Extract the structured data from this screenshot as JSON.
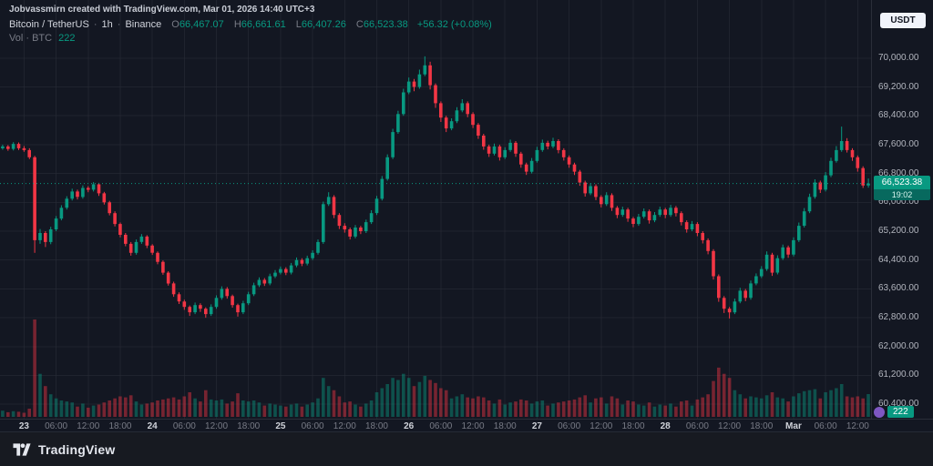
{
  "watermark": "Jobvassmirn created with TradingView.com, Mar 01, 2026 14:40 UTC+3",
  "header": {
    "symbol": "Bitcoin / TetherUS",
    "sep": "·",
    "interval": "1h",
    "exchange": "Binance",
    "ohlc": {
      "o_label": "O",
      "o": "66,467.07",
      "h_label": "H",
      "h": "66,661.61",
      "l_label": "L",
      "l": "66,407.26",
      "c_label": "C",
      "c": "66,523.38",
      "change": "+56.32 (+0.08%)"
    },
    "volume_label": "Vol · BTC",
    "volume_value": "222"
  },
  "price_scale": {
    "currency_button": "USDT",
    "last_price": "66,523.38",
    "countdown": "19:02",
    "volume_badge": "222"
  },
  "footer": {
    "brand": "TradingView"
  },
  "colors": {
    "up": "#089981",
    "down": "#f23645",
    "vol_up": "rgba(8,153,129,0.45)",
    "vol_down": "rgba(242,54,69,0.45)",
    "grid": "rgba(42,46,57,0.55)",
    "countdown_bg": "#07695e",
    "purple": "#7e57c2",
    "bg": "#131722"
  },
  "chart_data": {
    "type": "candlestick",
    "title": "Bitcoin / TetherUS · 1h · Binance",
    "symbol": "BTCUSDT",
    "interval": "1h",
    "exchange": "Binance",
    "last_close": 66523.38,
    "last_volume": 222,
    "countdown": "19:02",
    "price_axis": {
      "min": 60000,
      "max": 70400,
      "tick_step": 800,
      "ticks": [
        {
          "v": 70000,
          "label": "70,000.00"
        },
        {
          "v": 69200,
          "label": "69,200.00"
        },
        {
          "v": 68400,
          "label": "68,400.00"
        },
        {
          "v": 67600,
          "label": "67,600.00"
        },
        {
          "v": 66800,
          "label": "66,800.00"
        },
        {
          "v": 66000,
          "label": "66,000.00"
        },
        {
          "v": 65200,
          "label": "65,200.00"
        },
        {
          "v": 64400,
          "label": "64,400.00"
        },
        {
          "v": 63600,
          "label": "63,600.00"
        },
        {
          "v": 62800,
          "label": "62,800.00"
        },
        {
          "v": 62000,
          "label": "62,000.00"
        },
        {
          "v": 61200,
          "label": "61,200.00"
        },
        {
          "v": 60400,
          "label": "60,400.00"
        }
      ]
    },
    "time_labels": [
      {
        "t": "23",
        "i": 4,
        "d": 1
      },
      {
        "t": "06:00",
        "i": 10
      },
      {
        "t": "12:00",
        "i": 16
      },
      {
        "t": "18:00",
        "i": 22
      },
      {
        "t": "24",
        "i": 28,
        "d": 1
      },
      {
        "t": "06:00",
        "i": 34
      },
      {
        "t": "12:00",
        "i": 40
      },
      {
        "t": "18:00",
        "i": 46
      },
      {
        "t": "25",
        "i": 52,
        "d": 1
      },
      {
        "t": "06:00",
        "i": 58
      },
      {
        "t": "12:00",
        "i": 64
      },
      {
        "t": "18:00",
        "i": 70
      },
      {
        "t": "26",
        "i": 76,
        "d": 1
      },
      {
        "t": "06:00",
        "i": 82
      },
      {
        "t": "12:00",
        "i": 88
      },
      {
        "t": "18:00",
        "i": 94
      },
      {
        "t": "27",
        "i": 100,
        "d": 1
      },
      {
        "t": "06:00",
        "i": 106
      },
      {
        "t": "12:00",
        "i": 112
      },
      {
        "t": "18:00",
        "i": 118
      },
      {
        "t": "28",
        "i": 124,
        "d": 1
      },
      {
        "t": "06:00",
        "i": 130
      },
      {
        "t": "12:00",
        "i": 136
      },
      {
        "t": "18:00",
        "i": 142
      },
      {
        "t": "Mar",
        "i": 148,
        "d": 1
      },
      {
        "t": "06:00",
        "i": 154
      },
      {
        "t": "12:00",
        "i": 160
      }
    ],
    "candles": [
      [
        67500,
        67600,
        67460,
        67550,
        60
      ],
      [
        67550,
        67590,
        67430,
        67480,
        45
      ],
      [
        67480,
        67670,
        67440,
        67620,
        55
      ],
      [
        67620,
        67660,
        67450,
        67500,
        50
      ],
      [
        67500,
        67560,
        67400,
        67450,
        40
      ],
      [
        67450,
        67500,
        67200,
        67250,
        80
      ],
      [
        67250,
        67290,
        64600,
        64950,
        950
      ],
      [
        64950,
        65260,
        64850,
        65150,
        420
      ],
      [
        65150,
        65200,
        64760,
        64900,
        300
      ],
      [
        64900,
        65320,
        64840,
        65250,
        220
      ],
      [
        65250,
        65620,
        65200,
        65550,
        180
      ],
      [
        65550,
        65920,
        65500,
        65850,
        160
      ],
      [
        65850,
        66170,
        65800,
        66100,
        150
      ],
      [
        66100,
        66380,
        66050,
        66300,
        140
      ],
      [
        66300,
        66350,
        66080,
        66150,
        100
      ],
      [
        66150,
        66470,
        66100,
        66400,
        130
      ],
      [
        66400,
        66450,
        66280,
        66350,
        90
      ],
      [
        66350,
        66560,
        66300,
        66500,
        110
      ],
      [
        66500,
        66540,
        66180,
        66250,
        120
      ],
      [
        66250,
        66290,
        65940,
        66000,
        140
      ],
      [
        66000,
        66040,
        65640,
        65700,
        160
      ],
      [
        65700,
        65750,
        65330,
        65400,
        180
      ],
      [
        65400,
        65440,
        65030,
        65100,
        200
      ],
      [
        65100,
        65150,
        64780,
        64850,
        190
      ],
      [
        64850,
        64900,
        64520,
        64600,
        210
      ],
      [
        64600,
        64970,
        64550,
        64900,
        150
      ],
      [
        64900,
        65120,
        64850,
        65050,
        120
      ],
      [
        65050,
        65090,
        64730,
        64800,
        130
      ],
      [
        64800,
        64840,
        64540,
        64600,
        140
      ],
      [
        64600,
        64640,
        64280,
        64350,
        160
      ],
      [
        64350,
        64390,
        63990,
        64050,
        170
      ],
      [
        64050,
        64090,
        63690,
        63750,
        180
      ],
      [
        63750,
        63800,
        63380,
        63450,
        190
      ],
      [
        63450,
        63500,
        63180,
        63250,
        170
      ],
      [
        63250,
        63300,
        63020,
        63100,
        200
      ],
      [
        63100,
        63140,
        62850,
        62950,
        240
      ],
      [
        62950,
        63220,
        62900,
        63150,
        180
      ],
      [
        63150,
        63200,
        62960,
        63050,
        150
      ],
      [
        63050,
        63090,
        62800,
        62900,
        260
      ],
      [
        62900,
        63170,
        62850,
        63100,
        170
      ],
      [
        63100,
        63420,
        63050,
        63350,
        160
      ],
      [
        63350,
        63670,
        63300,
        63600,
        170
      ],
      [
        63600,
        63650,
        63330,
        63400,
        130
      ],
      [
        63400,
        63440,
        63080,
        63150,
        150
      ],
      [
        63150,
        63190,
        62830,
        62950,
        230
      ],
      [
        62950,
        63270,
        62900,
        63200,
        160
      ],
      [
        63200,
        63520,
        63150,
        63450,
        150
      ],
      [
        63450,
        63770,
        63400,
        63700,
        160
      ],
      [
        63700,
        63920,
        63650,
        63850,
        140
      ],
      [
        63850,
        63900,
        63680,
        63750,
        110
      ],
      [
        63750,
        64020,
        63700,
        63950,
        130
      ],
      [
        63950,
        64120,
        63900,
        64050,
        120
      ],
      [
        64050,
        64220,
        64000,
        64150,
        110
      ],
      [
        64150,
        64200,
        63980,
        64050,
        100
      ],
      [
        64050,
        64320,
        64000,
        64250,
        120
      ],
      [
        64250,
        64470,
        64200,
        64400,
        130
      ],
      [
        64400,
        64450,
        64230,
        64300,
        100
      ],
      [
        64300,
        64520,
        64250,
        64450,
        120
      ],
      [
        64450,
        64670,
        64400,
        64600,
        140
      ],
      [
        64600,
        64970,
        64550,
        64900,
        180
      ],
      [
        64900,
        66020,
        64850,
        65950,
        380
      ],
      [
        65950,
        66280,
        65900,
        66150,
        300
      ],
      [
        66150,
        66200,
        65560,
        65650,
        260
      ],
      [
        65650,
        65700,
        65260,
        65350,
        200
      ],
      [
        65350,
        65420,
        65160,
        65250,
        140
      ],
      [
        65250,
        65300,
        64970,
        65050,
        150
      ],
      [
        65050,
        65370,
        65000,
        65300,
        120
      ],
      [
        65300,
        65350,
        65120,
        65200,
        100
      ],
      [
        65200,
        65520,
        65150,
        65450,
        130
      ],
      [
        65450,
        65780,
        65400,
        65700,
        160
      ],
      [
        65700,
        66180,
        65650,
        66100,
        240
      ],
      [
        66100,
        66730,
        66050,
        66650,
        280
      ],
      [
        66650,
        67330,
        66600,
        67250,
        320
      ],
      [
        67250,
        68040,
        67200,
        67950,
        380
      ],
      [
        67950,
        68540,
        67900,
        68450,
        360
      ],
      [
        68450,
        69150,
        68400,
        69050,
        420
      ],
      [
        69050,
        69460,
        69000,
        69350,
        380
      ],
      [
        69350,
        69420,
        69080,
        69200,
        300
      ],
      [
        69200,
        69680,
        69150,
        69550,
        340
      ],
      [
        69550,
        70050,
        69500,
        69800,
        400
      ],
      [
        69800,
        69900,
        69130,
        69250,
        360
      ],
      [
        69250,
        69300,
        68620,
        68750,
        330
      ],
      [
        68750,
        68800,
        68230,
        68350,
        280
      ],
      [
        68350,
        68400,
        67950,
        68050,
        260
      ],
      [
        68050,
        68330,
        68000,
        68250,
        180
      ],
      [
        68250,
        68640,
        68200,
        68550,
        200
      ],
      [
        68550,
        68860,
        68500,
        68750,
        220
      ],
      [
        68750,
        68800,
        68360,
        68450,
        190
      ],
      [
        68450,
        68500,
        68060,
        68150,
        180
      ],
      [
        68150,
        68200,
        67760,
        67850,
        200
      ],
      [
        67850,
        67900,
        67460,
        67550,
        190
      ],
      [
        67550,
        67600,
        67260,
        67350,
        160
      ],
      [
        67350,
        67630,
        67300,
        67550,
        130
      ],
      [
        67550,
        67600,
        67160,
        67250,
        170
      ],
      [
        67250,
        67530,
        67200,
        67450,
        120
      ],
      [
        67450,
        67740,
        67400,
        67650,
        140
      ],
      [
        67650,
        67700,
        67260,
        67350,
        150
      ],
      [
        67350,
        67400,
        66960,
        67050,
        170
      ],
      [
        67050,
        67100,
        66760,
        66850,
        160
      ],
      [
        66850,
        67230,
        66800,
        67150,
        130
      ],
      [
        67150,
        67540,
        67100,
        67450,
        150
      ],
      [
        67450,
        67740,
        67400,
        67650,
        160
      ],
      [
        67650,
        67710,
        67470,
        67550,
        110
      ],
      [
        67550,
        67790,
        67500,
        67700,
        130
      ],
      [
        67700,
        67750,
        67360,
        67450,
        140
      ],
      [
        67450,
        67500,
        67160,
        67250,
        150
      ],
      [
        67250,
        67300,
        66960,
        67050,
        160
      ],
      [
        67050,
        67100,
        66760,
        66850,
        170
      ],
      [
        66850,
        66900,
        66460,
        66550,
        190
      ],
      [
        66550,
        66600,
        66160,
        66250,
        210
      ],
      [
        66250,
        66530,
        66200,
        66450,
        140
      ],
      [
        66450,
        66500,
        66060,
        66150,
        180
      ],
      [
        66150,
        66200,
        65860,
        65950,
        190
      ],
      [
        65950,
        66280,
        65900,
        66200,
        130
      ],
      [
        66200,
        66250,
        65760,
        65850,
        200
      ],
      [
        65850,
        65900,
        65560,
        65650,
        180
      ],
      [
        65650,
        65880,
        65600,
        65800,
        120
      ],
      [
        65800,
        65850,
        65460,
        65550,
        160
      ],
      [
        65550,
        65600,
        65310,
        65400,
        150
      ],
      [
        65400,
        65680,
        65350,
        65600,
        120
      ],
      [
        65600,
        65830,
        65550,
        65750,
        110
      ],
      [
        65750,
        65800,
        65410,
        65500,
        140
      ],
      [
        65500,
        65730,
        65450,
        65650,
        100
      ],
      [
        65650,
        65880,
        65600,
        65800,
        120
      ],
      [
        65800,
        65850,
        65560,
        65650,
        110
      ],
      [
        65650,
        65930,
        65600,
        65850,
        130
      ],
      [
        65850,
        65900,
        65610,
        65700,
        100
      ],
      [
        65700,
        65750,
        65360,
        65450,
        150
      ],
      [
        65450,
        65500,
        65160,
        65250,
        160
      ],
      [
        65250,
        65480,
        65200,
        65400,
        110
      ],
      [
        65400,
        65450,
        65060,
        65150,
        170
      ],
      [
        65150,
        65200,
        64860,
        64950,
        190
      ],
      [
        64950,
        65000,
        64560,
        64650,
        220
      ],
      [
        64650,
        64700,
        63860,
        63950,
        350
      ],
      [
        63950,
        64000,
        63240,
        63350,
        480
      ],
      [
        63350,
        63400,
        62930,
        63050,
        420
      ],
      [
        63050,
        63100,
        62780,
        62950,
        380
      ],
      [
        62950,
        63330,
        62900,
        63250,
        260
      ],
      [
        63250,
        63630,
        63200,
        63550,
        220
      ],
      [
        63550,
        63600,
        63260,
        63350,
        180
      ],
      [
        63350,
        63830,
        63300,
        63750,
        200
      ],
      [
        63750,
        64030,
        63700,
        63950,
        190
      ],
      [
        63950,
        64230,
        63900,
        64150,
        180
      ],
      [
        64150,
        64640,
        64100,
        64550,
        210
      ],
      [
        64550,
        64600,
        63960,
        64050,
        240
      ],
      [
        64050,
        64530,
        64000,
        64450,
        190
      ],
      [
        64450,
        64830,
        64400,
        64750,
        180
      ],
      [
        64750,
        64800,
        64460,
        64550,
        150
      ],
      [
        64550,
        65030,
        64500,
        64950,
        200
      ],
      [
        64950,
        65440,
        64900,
        65350,
        230
      ],
      [
        65350,
        65840,
        65300,
        65750,
        250
      ],
      [
        65750,
        66240,
        65700,
        66150,
        260
      ],
      [
        66150,
        66640,
        66100,
        66550,
        270
      ],
      [
        66550,
        66600,
        66260,
        66350,
        180
      ],
      [
        66350,
        66840,
        66300,
        66750,
        240
      ],
      [
        66750,
        67240,
        66700,
        67150,
        260
      ],
      [
        67150,
        67560,
        67100,
        67450,
        280
      ],
      [
        67450,
        68100,
        67400,
        67700,
        320
      ],
      [
        67700,
        67780,
        67380,
        67450,
        200
      ],
      [
        67450,
        67500,
        67150,
        67250,
        190
      ],
      [
        67250,
        67300,
        66850,
        66950,
        200
      ],
      [
        66950,
        67000,
        66400,
        66467,
        180
      ],
      [
        66467.07,
        66661.61,
        66407.26,
        66523.38,
        222
      ]
    ]
  }
}
